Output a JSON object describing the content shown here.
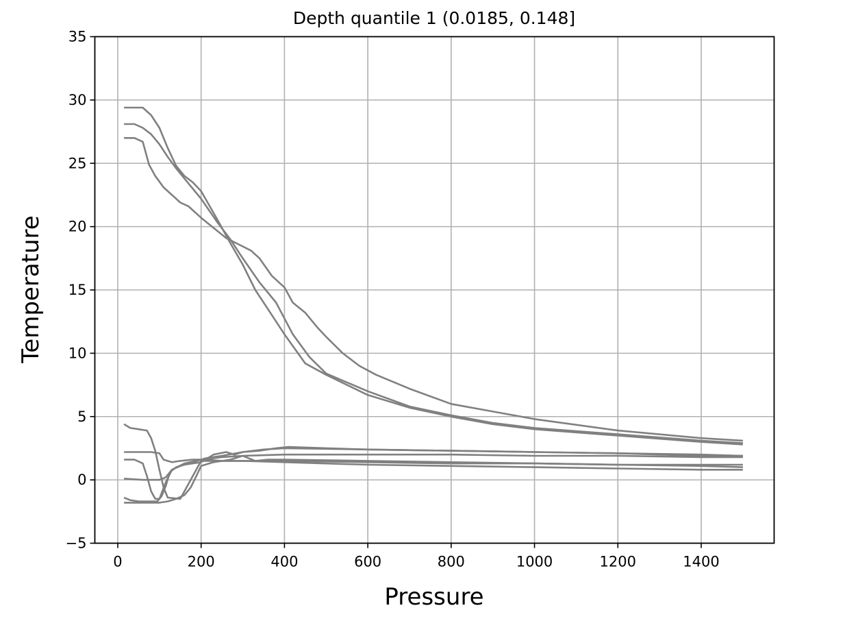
{
  "chart_data": {
    "type": "line",
    "title": "Depth quantile 1 (0.0185, 0.148]",
    "xlabel": "Pressure",
    "ylabel": "Temperature",
    "xlim": [
      -55,
      1575
    ],
    "ylim": [
      -5,
      35
    ],
    "xticks": [
      0,
      200,
      400,
      600,
      800,
      1000,
      1200,
      1400
    ],
    "yticks": [
      -5,
      0,
      5,
      10,
      15,
      20,
      25,
      30,
      35
    ],
    "xtick_labels": [
      "0",
      "200",
      "400",
      "600",
      "800",
      "1000",
      "1200",
      "1400"
    ],
    "ytick_labels": [
      "−5",
      "0",
      "5",
      "10",
      "15",
      "20",
      "25",
      "30",
      "35"
    ],
    "grid": true,
    "line_color": "#808080",
    "series": [
      {
        "x": [
          15,
          60,
          80,
          100,
          120,
          140,
          160,
          180,
          200,
          240,
          270,
          300,
          330,
          360,
          400,
          450,
          500,
          550,
          600,
          700,
          800,
          900,
          1000,
          1200,
          1400,
          1500
        ],
        "y": [
          29.4,
          29.4,
          28.8,
          27.8,
          26.2,
          24.8,
          24.0,
          23.5,
          22.8,
          20.5,
          18.7,
          17.0,
          15.0,
          13.5,
          11.5,
          9.2,
          8.3,
          7.5,
          6.7,
          5.7,
          5.0,
          4.4,
          4.0,
          3.5,
          3.0,
          2.8
        ]
      },
      {
        "x": [
          15,
          40,
          60,
          80,
          100,
          120,
          140,
          160,
          200,
          240,
          270,
          300,
          340,
          380,
          420,
          460,
          500,
          550,
          600,
          700,
          800,
          900,
          1000,
          1200,
          1400,
          1500
        ],
        "y": [
          28.1,
          28.1,
          27.8,
          27.3,
          26.5,
          25.5,
          24.6,
          23.8,
          22.2,
          20.3,
          19.0,
          17.5,
          15.6,
          14.0,
          11.5,
          9.7,
          8.4,
          7.7,
          7.0,
          5.8,
          5.1,
          4.5,
          4.1,
          3.6,
          3.1,
          2.9
        ]
      },
      {
        "x": [
          15,
          40,
          60,
          75,
          90,
          110,
          130,
          150,
          170,
          200,
          230,
          260,
          290,
          320,
          340,
          370,
          400,
          420,
          450,
          480,
          500,
          540,
          580,
          620,
          700,
          800,
          900,
          1000,
          1200,
          1400,
          1500
        ],
        "y": [
          27.0,
          27.0,
          26.7,
          24.9,
          24.0,
          23.1,
          22.5,
          21.9,
          21.6,
          20.7,
          19.9,
          19.1,
          18.6,
          18.1,
          17.5,
          16.1,
          15.2,
          14.0,
          13.2,
          12.0,
          11.3,
          10.0,
          9.0,
          8.3,
          7.2,
          6.0,
          5.4,
          4.8,
          3.9,
          3.3,
          3.1
        ]
      },
      {
        "x": [
          15,
          30,
          50,
          70,
          80,
          90,
          100,
          110,
          120,
          150,
          200,
          300,
          400,
          600,
          800,
          1000,
          1200,
          1400,
          1500
        ],
        "y": [
          4.4,
          4.1,
          4.0,
          3.9,
          3.3,
          2.3,
          0.8,
          -0.6,
          -1.4,
          -1.5,
          1.5,
          1.5,
          1.4,
          1.2,
          1.1,
          1.0,
          0.9,
          0.8,
          0.8
        ]
      },
      {
        "x": [
          15,
          80,
          100,
          110,
          130,
          150,
          180,
          210,
          250,
          300,
          400,
          600,
          800,
          1000,
          1200,
          1400,
          1500
        ],
        "y": [
          2.2,
          2.2,
          2.1,
          1.6,
          1.4,
          1.5,
          1.6,
          1.6,
          1.5,
          1.5,
          1.5,
          1.4,
          1.3,
          1.3,
          1.2,
          1.2,
          1.2
        ]
      },
      {
        "x": [
          15,
          40,
          60,
          70,
          80,
          90,
          100,
          115,
          130,
          160,
          200,
          250,
          300,
          400,
          600,
          800,
          1000,
          1200,
          1400,
          1500
        ],
        "y": [
          1.6,
          1.6,
          1.3,
          0.3,
          -0.9,
          -1.5,
          -1.5,
          -0.2,
          0.8,
          1.3,
          1.6,
          1.8,
          1.9,
          2.0,
          2.0,
          2.0,
          1.9,
          1.9,
          1.8,
          1.8
        ]
      },
      {
        "x": [
          15,
          60,
          100,
          115,
          130,
          150,
          180,
          210,
          250,
          300,
          350,
          400,
          600,
          800,
          1000,
          1200,
          1400,
          1500
        ],
        "y": [
          0.1,
          0.0,
          0.0,
          0.2,
          0.8,
          1.1,
          1.4,
          1.7,
          1.9,
          2.2,
          2.4,
          2.5,
          2.4,
          2.3,
          2.2,
          2.1,
          2.0,
          1.9
        ]
      },
      {
        "x": [
          15,
          30,
          50,
          80,
          95,
          105,
          115,
          125,
          140,
          160,
          180,
          200,
          230,
          260,
          280,
          300,
          340,
          380,
          410,
          500,
          600,
          800,
          1000,
          1200,
          1400,
          1500
        ],
        "y": [
          -1.4,
          -1.6,
          -1.7,
          -1.7,
          -1.7,
          -1.3,
          -0.5,
          0.6,
          1.0,
          1.2,
          1.3,
          1.4,
          2.0,
          2.2,
          2.0,
          2.2,
          2.3,
          2.5,
          2.6,
          2.5,
          2.4,
          2.3,
          2.2,
          2.1,
          1.9,
          1.9
        ]
      },
      {
        "x": [
          15,
          60,
          100,
          120,
          140,
          160,
          175,
          190,
          200,
          230,
          270,
          300,
          330,
          360,
          400,
          600,
          800,
          1000,
          1200,
          1400,
          1500
        ],
        "y": [
          -1.8,
          -1.8,
          -1.8,
          -1.7,
          -1.5,
          -1.2,
          -0.6,
          0.4,
          1.1,
          1.4,
          1.6,
          1.9,
          1.5,
          1.6,
          1.6,
          1.5,
          1.4,
          1.3,
          1.2,
          1.1,
          1.0
        ]
      }
    ]
  }
}
